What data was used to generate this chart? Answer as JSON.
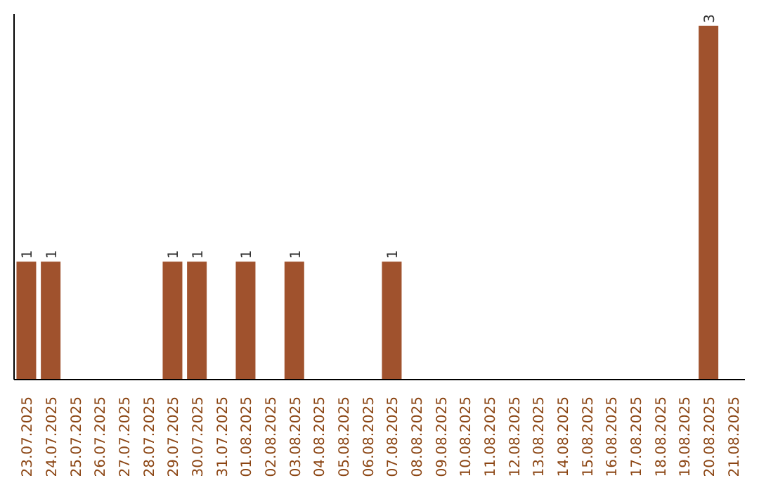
{
  "chart_data": {
    "type": "bar",
    "categories": [
      "23.07.2025",
      "24.07.2025",
      "25.07.2025",
      "26.07.2025",
      "27.07.2025",
      "28.07.2025",
      "29.07.2025",
      "30.07.2025",
      "31.07.2025",
      "01.08.2025",
      "02.08.2025",
      "03.08.2025",
      "04.08.2025",
      "05.08.2025",
      "06.08.2025",
      "07.08.2025",
      "08.08.2025",
      "09.08.2025",
      "10.08.2025",
      "11.08.2025",
      "12.08.2025",
      "13.08.2025",
      "14.08.2025",
      "15.08.2025",
      "16.08.2025",
      "17.08.2025",
      "18.08.2025",
      "19.08.2025",
      "20.08.2025",
      "21.08.2025"
    ],
    "values": [
      1,
      1,
      0,
      0,
      0,
      0,
      1,
      1,
      0,
      1,
      0,
      1,
      0,
      0,
      0,
      1,
      0,
      0,
      0,
      0,
      0,
      0,
      0,
      0,
      0,
      0,
      0,
      0,
      3,
      0
    ],
    "value_labels": [
      "1",
      "1",
      null,
      null,
      null,
      null,
      "1",
      "1",
      null,
      "1",
      null,
      "1",
      null,
      null,
      null,
      "1",
      null,
      null,
      null,
      null,
      null,
      null,
      null,
      null,
      null,
      null,
      null,
      null,
      "3",
      null
    ],
    "color": "#a0522d",
    "ylim": [
      0,
      3.1
    ],
    "tick_labels": "x",
    "grid": false,
    "legend": false
  }
}
